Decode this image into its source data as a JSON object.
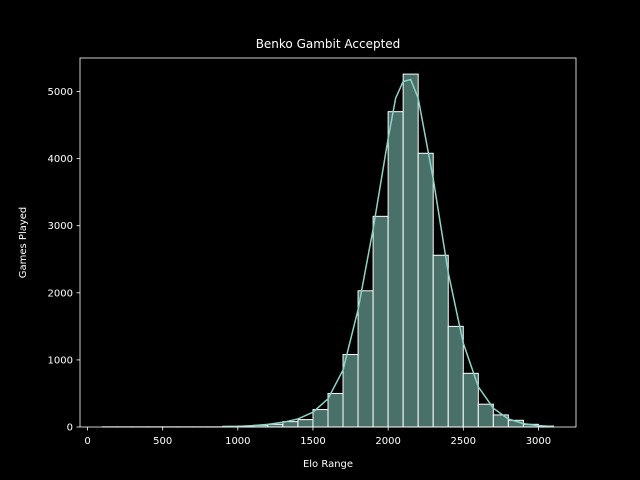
{
  "chart_data": {
    "type": "bar",
    "title": "Benko Gambit Accepted",
    "xlabel": "Elo Range",
    "ylabel": "Games Played",
    "xlim": [
      -50,
      3250
    ],
    "ylim": [
      0,
      5500
    ],
    "xticks": [
      0,
      500,
      1000,
      1500,
      2000,
      2500,
      3000
    ],
    "yticks": [
      0,
      1000,
      2000,
      3000,
      4000,
      5000
    ],
    "bin_edges": [
      100,
      200,
      300,
      400,
      500,
      600,
      700,
      800,
      900,
      1000,
      1100,
      1200,
      1300,
      1400,
      1500,
      1600,
      1700,
      1800,
      1900,
      2000,
      2100,
      2200,
      2300,
      2400,
      2500,
      2600,
      2700,
      2800,
      2900,
      3000,
      3100
    ],
    "values": [
      2,
      2,
      2,
      2,
      2,
      2,
      2,
      2,
      10,
      15,
      25,
      40,
      80,
      110,
      260,
      500,
      1080,
      2030,
      3140,
      4700,
      5260,
      4080,
      2560,
      1500,
      800,
      340,
      180,
      100,
      40,
      15
    ],
    "kde_x": [
      900,
      1000,
      1100,
      1200,
      1300,
      1400,
      1500,
      1600,
      1700,
      1800,
      1900,
      2000,
      2050,
      2100,
      2150,
      2200,
      2300,
      2400,
      2500,
      2600,
      2700,
      2800,
      2900,
      3000,
      3100
    ],
    "kde_y": [
      5,
      10,
      20,
      40,
      70,
      120,
      220,
      420,
      850,
      1750,
      2950,
      4300,
      4900,
      5150,
      5180,
      4900,
      3700,
      2300,
      1250,
      600,
      280,
      120,
      50,
      20,
      8
    ],
    "grid": false,
    "colors": {
      "background": "#000000",
      "bar_fill": "#4a7169",
      "bar_edge": "#ffffff",
      "kde_line": "#8dd3c7",
      "axes": "#ffffff",
      "text": "#ffffff"
    }
  }
}
